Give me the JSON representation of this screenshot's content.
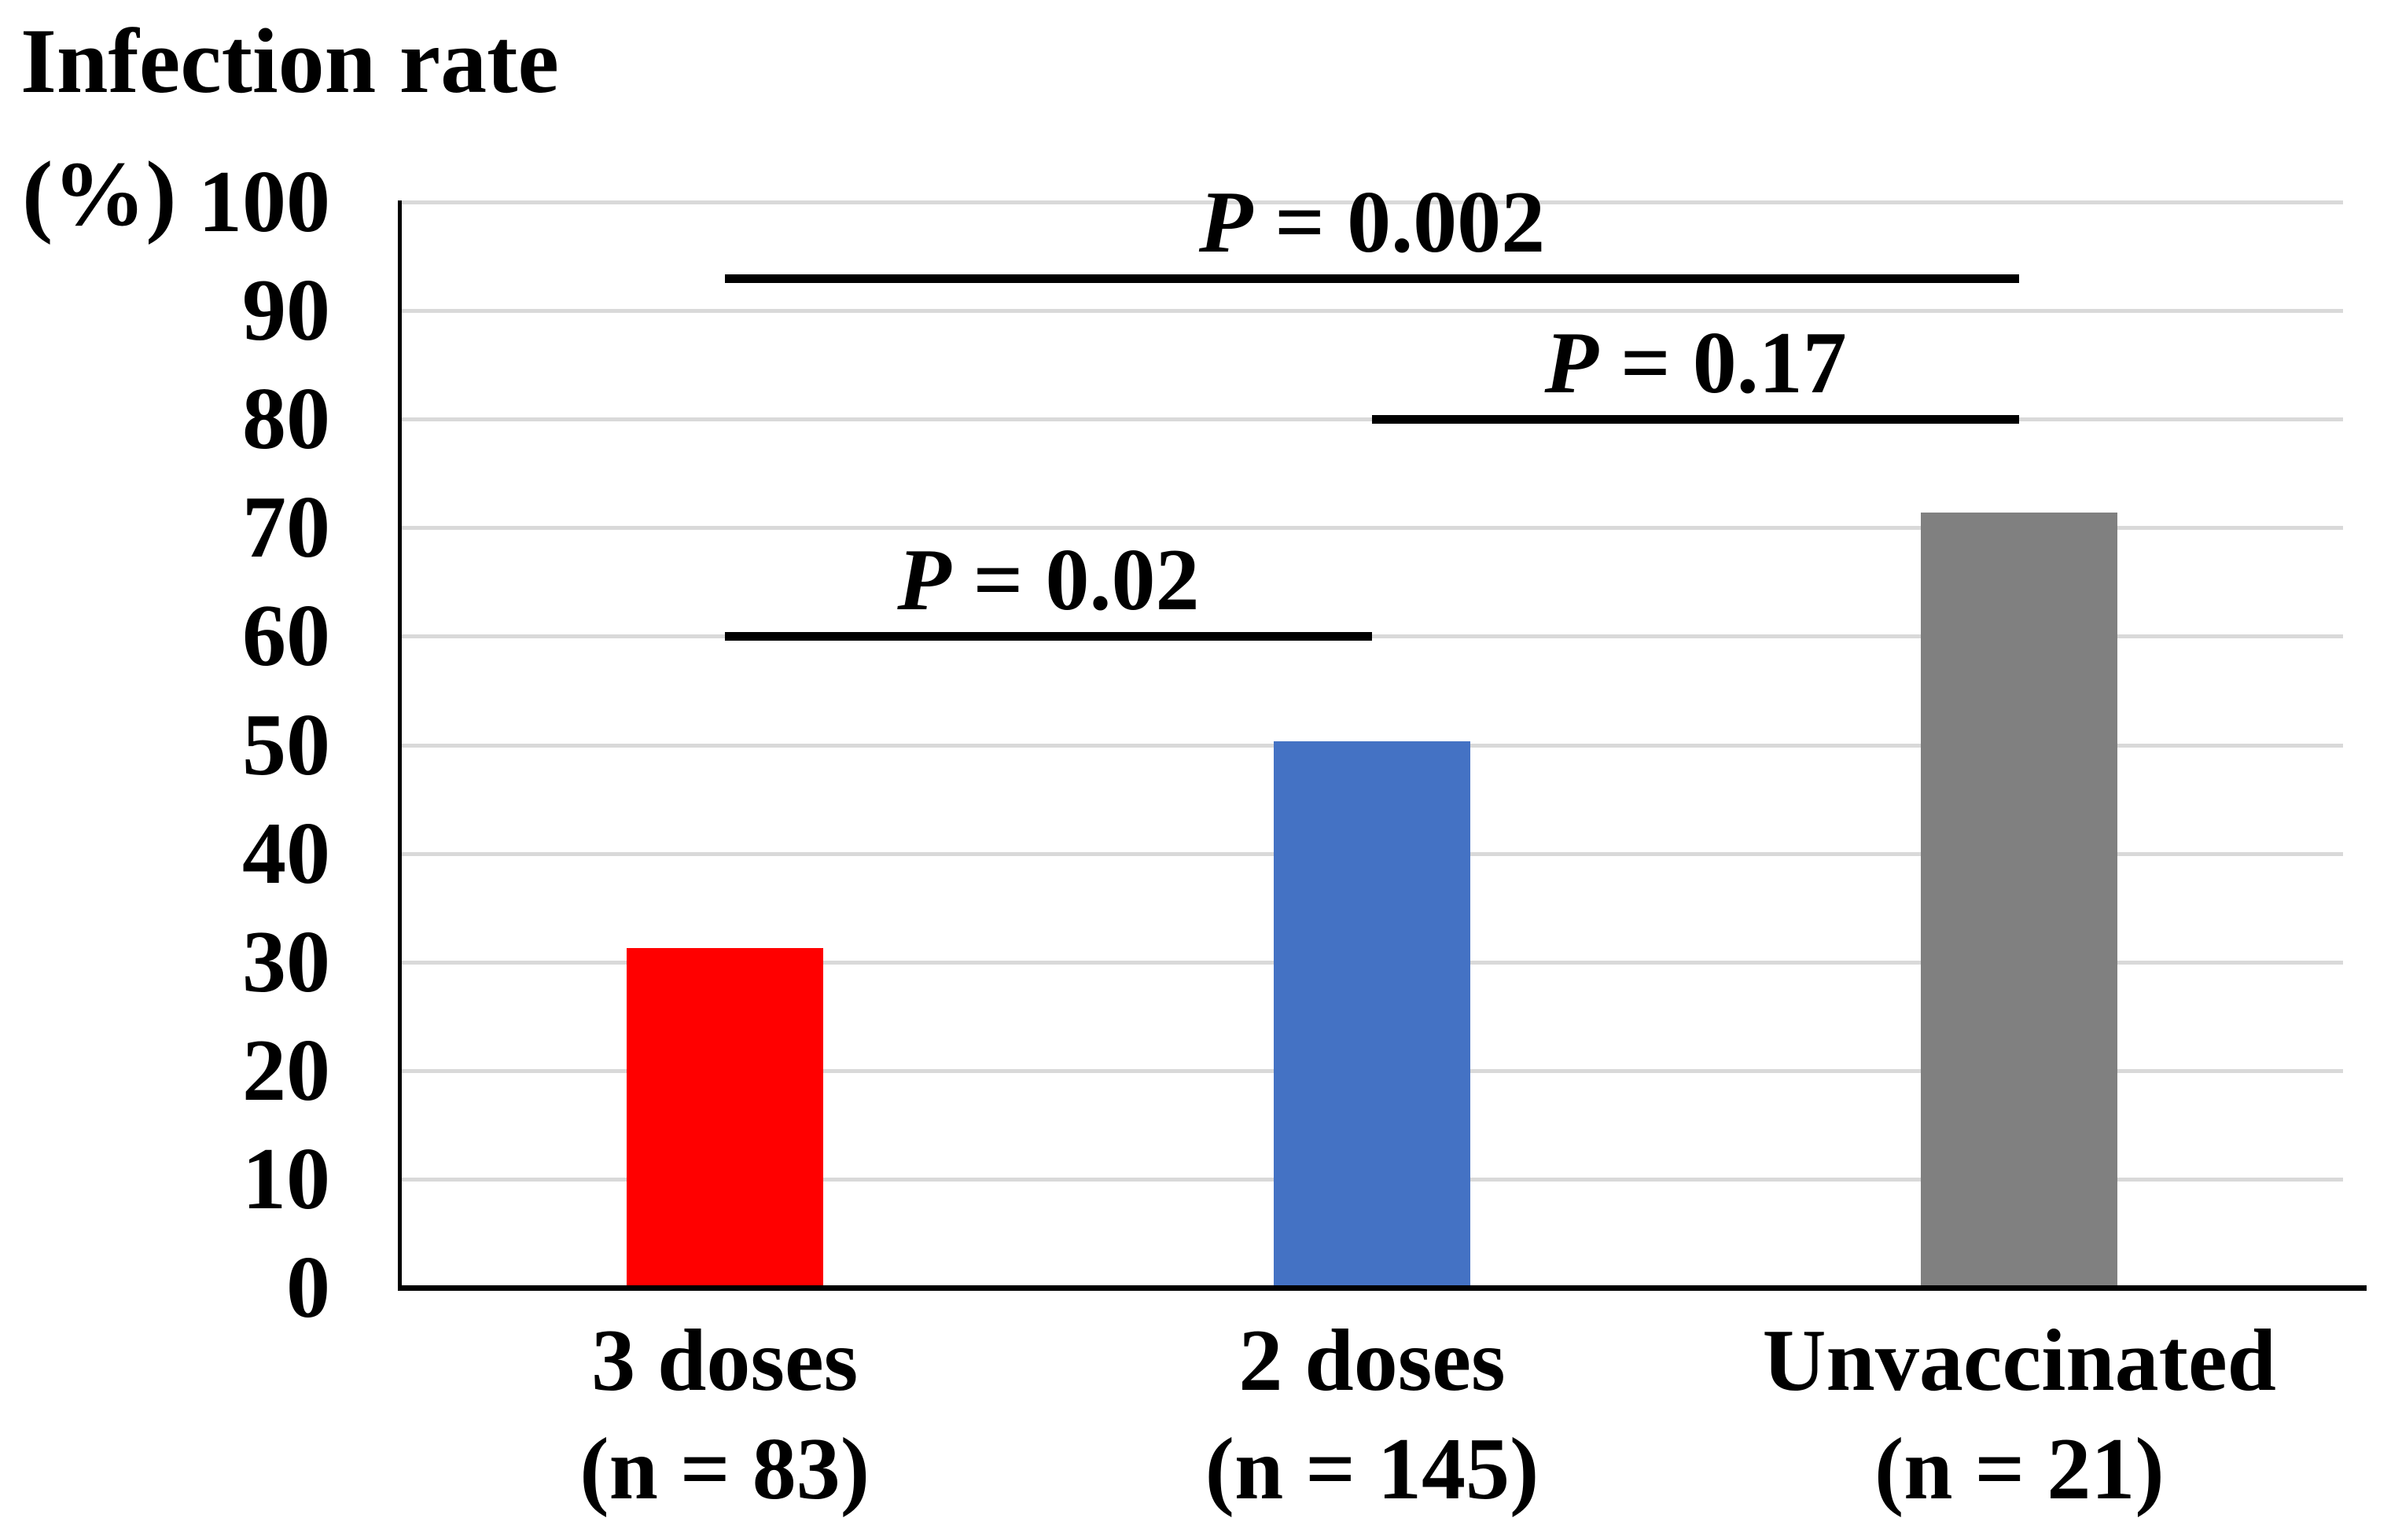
{
  "chart_data": {
    "type": "bar",
    "title": "Infection rate",
    "unit": "(%)",
    "ylabel": "Infection rate (%)",
    "xlabel": "",
    "categories": [
      "3 doses",
      "2 doses",
      "Unvaccinated"
    ],
    "category_sublabels": [
      "(n = 83)",
      "(n = 145)",
      "(n = 21)"
    ],
    "values": [
      31.3,
      50.3,
      71.4
    ],
    "bar_colors": [
      "#ff0000",
      "#4472c4",
      "#808080"
    ],
    "ylim": [
      0,
      100
    ],
    "yticks": [
      0,
      10,
      20,
      30,
      40,
      50,
      60,
      70,
      80,
      90,
      100
    ],
    "grid": true,
    "legend": false,
    "gridline_color": "#d9d9d9",
    "axis_color": "#000000",
    "background_color": "#ffffff",
    "annotations": [
      {
        "label": "P = 0.002",
        "symbol": "P",
        "rest": " = 0.002",
        "from_index": 0,
        "to_index": 2,
        "y": 93
      },
      {
        "label": "P = 0.17",
        "symbol": "P",
        "rest": " = 0.17",
        "from_index": 1,
        "to_index": 2,
        "y": 80
      },
      {
        "label": "P = 0.02",
        "symbol": "P",
        "rest": " = 0.02",
        "from_index": 0,
        "to_index": 1,
        "y": 60
      }
    ]
  }
}
